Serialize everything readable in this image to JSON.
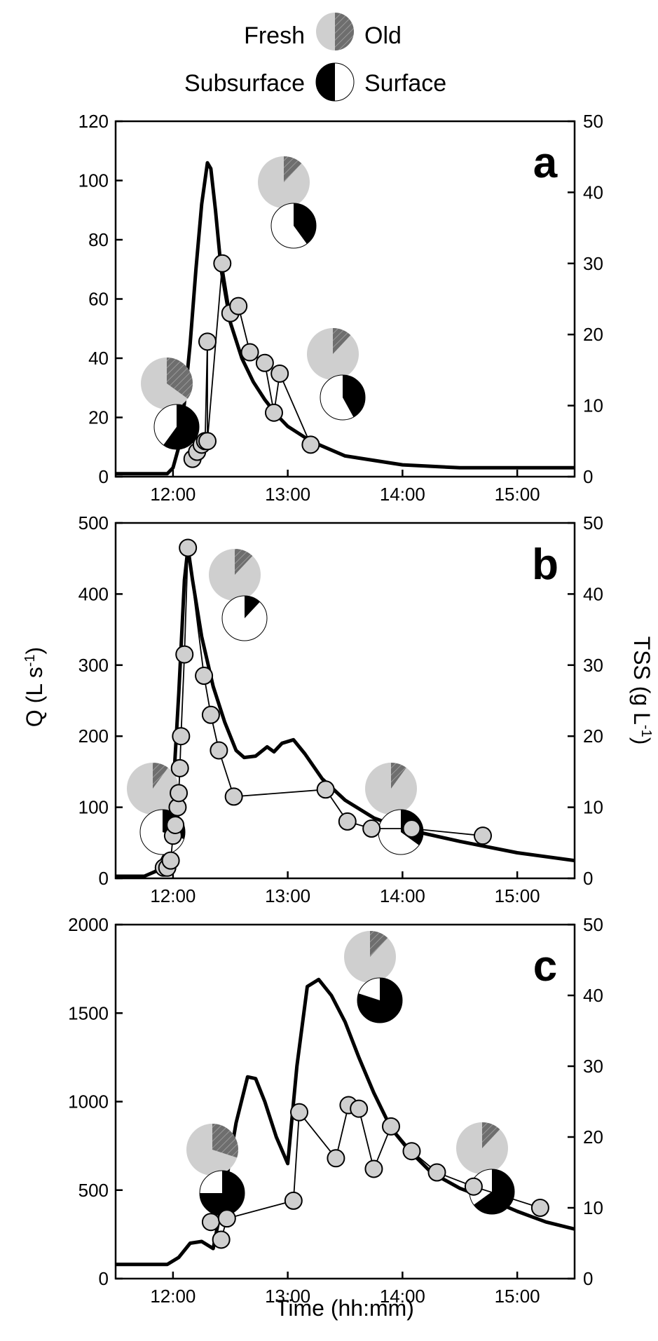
{
  "colors": {
    "fresh": "#6e6e6e",
    "old": "#cfcfcf",
    "subsurface": "#000000",
    "surface": "#ffffff",
    "marker": "#cfcfcf"
  },
  "legend": {
    "fresh": "Fresh",
    "old": "Old",
    "subsurface": "Subsurface",
    "surface": "Surface"
  },
  "axes": {
    "xlabel": "Time (hh:mm)",
    "ylabel_left_parts": [
      "Q (L s",
      "-1",
      ")"
    ],
    "ylabel_right_parts": [
      "TSS (g L",
      "-1",
      ")"
    ],
    "x_ticks": [
      "12:00",
      "13:00",
      "14:00",
      "15:00"
    ]
  },
  "chart_data": [
    {
      "type": "line",
      "panel_label": "a",
      "xlim_hours": [
        11.5,
        15.5
      ],
      "ylim_left": [
        0,
        120
      ],
      "ylim_right": [
        0,
        50
      ],
      "yticks_left": [
        0,
        20,
        40,
        60,
        80,
        100,
        120
      ],
      "yticks_right": [
        0,
        10,
        20,
        30,
        40,
        50
      ],
      "series": [
        {
          "axis": "left",
          "x": [
            11.5,
            11.8,
            11.95,
            12.0,
            12.05,
            12.1,
            12.15,
            12.2,
            12.25,
            12.3,
            12.33,
            12.37,
            12.42,
            12.5,
            12.6,
            12.7,
            12.8,
            12.9,
            13.0,
            13.2,
            13.5,
            14.0,
            14.5,
            15.0,
            15.5
          ],
          "y": [
            1,
            1,
            1,
            3,
            10,
            25,
            45,
            70,
            92,
            106,
            104,
            90,
            70,
            52,
            40,
            32,
            26,
            21,
            17,
            12,
            7,
            4,
            3,
            3,
            3
          ]
        },
        {
          "axis": "right",
          "marker": "circle",
          "x": [
            12.17,
            12.21,
            12.25,
            12.28,
            12.3,
            12.3,
            12.43,
            12.5,
            12.57,
            12.67,
            12.8,
            12.88,
            12.93,
            13.2
          ],
          "y": [
            2.5,
            3.5,
            4.5,
            5,
            19,
            5,
            30,
            23,
            24,
            17.5,
            16,
            9,
            14.5,
            4.5
          ]
        }
      ],
      "pies": [
        {
          "fresh": 0.35,
          "subsurface": 0.6
        },
        {
          "fresh": 0.12,
          "subsurface": 0.4
        },
        {
          "fresh": 0.12,
          "subsurface": 0.42
        }
      ]
    },
    {
      "type": "line",
      "panel_label": "b",
      "xlim_hours": [
        11.5,
        15.5
      ],
      "ylim_left": [
        0,
        500
      ],
      "ylim_right": [
        0,
        50
      ],
      "yticks_left": [
        0,
        100,
        200,
        300,
        400,
        500
      ],
      "yticks_right": [
        0,
        10,
        20,
        30,
        40,
        50
      ],
      "series": [
        {
          "axis": "left",
          "x": [
            11.5,
            11.75,
            11.85,
            11.95,
            12.0,
            12.05,
            12.1,
            12.13,
            12.17,
            12.25,
            12.35,
            12.45,
            12.55,
            12.62,
            12.72,
            12.82,
            12.88,
            12.95,
            13.05,
            13.15,
            13.3,
            13.5,
            13.75,
            14.0,
            14.5,
            15.0,
            15.5
          ],
          "y": [
            3,
            3,
            10,
            40,
            120,
            260,
            420,
            465,
            420,
            340,
            270,
            220,
            180,
            170,
            172,
            185,
            178,
            190,
            195,
            175,
            140,
            110,
            85,
            70,
            52,
            36,
            25
          ]
        },
        {
          "axis": "right",
          "marker": "circle",
          "x": [
            11.92,
            11.95,
            11.98,
            12.0,
            12.02,
            12.04,
            12.05,
            12.06,
            12.07,
            12.1,
            12.13,
            12.27,
            12.33,
            12.4,
            12.53,
            13.33,
            13.52,
            13.73,
            14.08,
            14.7
          ],
          "y": [
            1.5,
            1.5,
            2.5,
            6,
            7.5,
            10,
            12,
            15.5,
            20,
            31.5,
            46.5,
            28.5,
            23,
            18,
            11.5,
            12.5,
            8,
            7,
            7,
            6
          ]
        }
      ],
      "pies": [
        {
          "fresh": 0.1,
          "subsurface": 0.3
        },
        {
          "fresh": 0.12,
          "subsurface": 0.12
        },
        {
          "fresh": 0.1,
          "subsurface": 0.35
        }
      ]
    },
    {
      "type": "line",
      "panel_label": "c",
      "xlim_hours": [
        11.5,
        15.5
      ],
      "ylim_left": [
        0,
        2000
      ],
      "ylim_right": [
        0,
        50
      ],
      "yticks_left": [
        0,
        500,
        1000,
        1500,
        2000
      ],
      "yticks_right": [
        0,
        10,
        20,
        30,
        40,
        50
      ],
      "series": [
        {
          "axis": "left",
          "x": [
            11.5,
            11.95,
            12.05,
            12.15,
            12.25,
            12.35,
            12.45,
            12.55,
            12.65,
            12.72,
            12.8,
            12.9,
            13.0,
            13.08,
            13.17,
            13.27,
            13.38,
            13.5,
            13.62,
            13.75,
            13.9,
            14.05,
            14.25,
            14.5,
            14.75,
            15.0,
            15.25,
            15.5
          ],
          "y": [
            80,
            80,
            120,
            200,
            210,
            170,
            500,
            880,
            1140,
            1130,
            1000,
            800,
            650,
            1200,
            1650,
            1690,
            1600,
            1450,
            1250,
            1050,
            850,
            730,
            600,
            510,
            450,
            380,
            320,
            280
          ]
        },
        {
          "axis": "right",
          "marker": "circle",
          "x": [
            12.33,
            12.42,
            12.47,
            13.05,
            13.1,
            13.42,
            13.53,
            13.62,
            13.75,
            13.9,
            14.08,
            14.3,
            14.62,
            15.2
          ],
          "y": [
            8,
            5.5,
            8.5,
            11,
            23.5,
            17,
            24.5,
            24,
            15.5,
            21.5,
            18,
            15,
            13,
            10
          ]
        }
      ],
      "pies": [
        {
          "fresh": 0.3,
          "subsurface": 0.75
        },
        {
          "fresh": 0.12,
          "subsurface": 0.8
        },
        {
          "fresh": 0.12,
          "subsurface": 0.65
        }
      ]
    }
  ]
}
